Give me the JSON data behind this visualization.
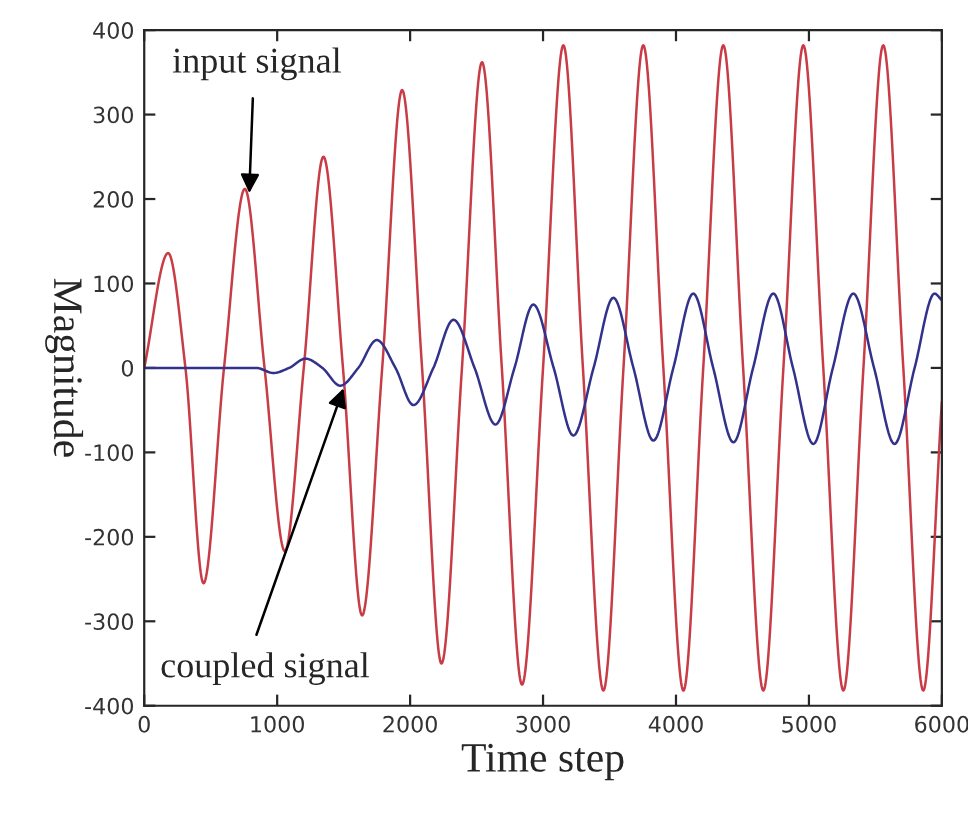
{
  "chart_data": {
    "type": "line",
    "xlabel": "Time step",
    "ylabel": "Magnitude",
    "xlim": [
      0,
      6000
    ],
    "ylim": [
      -400,
      400
    ],
    "xticks": [
      0,
      1000,
      2000,
      3000,
      4000,
      5000,
      6000
    ],
    "yticks": [
      -400,
      -300,
      -200,
      -100,
      0,
      100,
      200,
      300,
      400
    ],
    "grid": false,
    "legend": false,
    "marker": "none",
    "line_style": "solid",
    "series": [
      {
        "color": "#c83c46",
        "x": [
          0,
          180,
          310,
          446,
          600,
          757,
          905,
          1058,
          1200,
          1348,
          1495,
          1639,
          1790,
          1940,
          2090,
          2236,
          2390,
          2541,
          2690,
          2842,
          3000,
          3153,
          3300,
          3454,
          3605,
          3754,
          3905,
          4056,
          4205,
          4356,
          4505,
          4657,
          4808,
          4958,
          5108,
          5259,
          5410,
          5559,
          5710,
          5860,
          6000
        ],
        "values": [
          0,
          136,
          0,
          -255,
          0,
          212,
          0,
          -217,
          0,
          250,
          0,
          -293,
          0,
          329,
          0,
          -350,
          0,
          362,
          0,
          -375,
          0,
          382,
          0,
          -382,
          0,
          382,
          0,
          -382,
          0,
          382,
          0,
          -382,
          0,
          382,
          0,
          -382,
          0,
          382,
          0,
          -382,
          -40
        ]
      },
      {
        "color": "#32328c",
        "x": [
          0,
          842,
          972,
          1090,
          1213,
          1340,
          1474,
          1610,
          1749,
          1890,
          2025,
          2175,
          2326,
          2485,
          2642,
          2785,
          2927,
          3080,
          3228,
          3380,
          3529,
          3680,
          3830,
          3980,
          4130,
          4280,
          4432,
          4580,
          4732,
          4880,
          5033,
          5180,
          5334,
          5490,
          5644,
          5795,
          5945,
          6000
        ],
        "values": [
          0,
          0,
          -6,
          0,
          11,
          0,
          -21,
          0,
          33,
          0,
          -44,
          0,
          57,
          0,
          -67,
          0,
          75,
          0,
          -80,
          0,
          83,
          0,
          -86,
          0,
          88,
          0,
          -88,
          0,
          88,
          0,
          -90,
          0,
          88,
          0,
          -90,
          0,
          88,
          80
        ]
      }
    ],
    "annotations": [
      {
        "text": "input signal",
        "x": 790,
        "y": 207
      },
      {
        "text": "coupled signal",
        "x": 1499,
        "y": -24
      }
    ]
  }
}
